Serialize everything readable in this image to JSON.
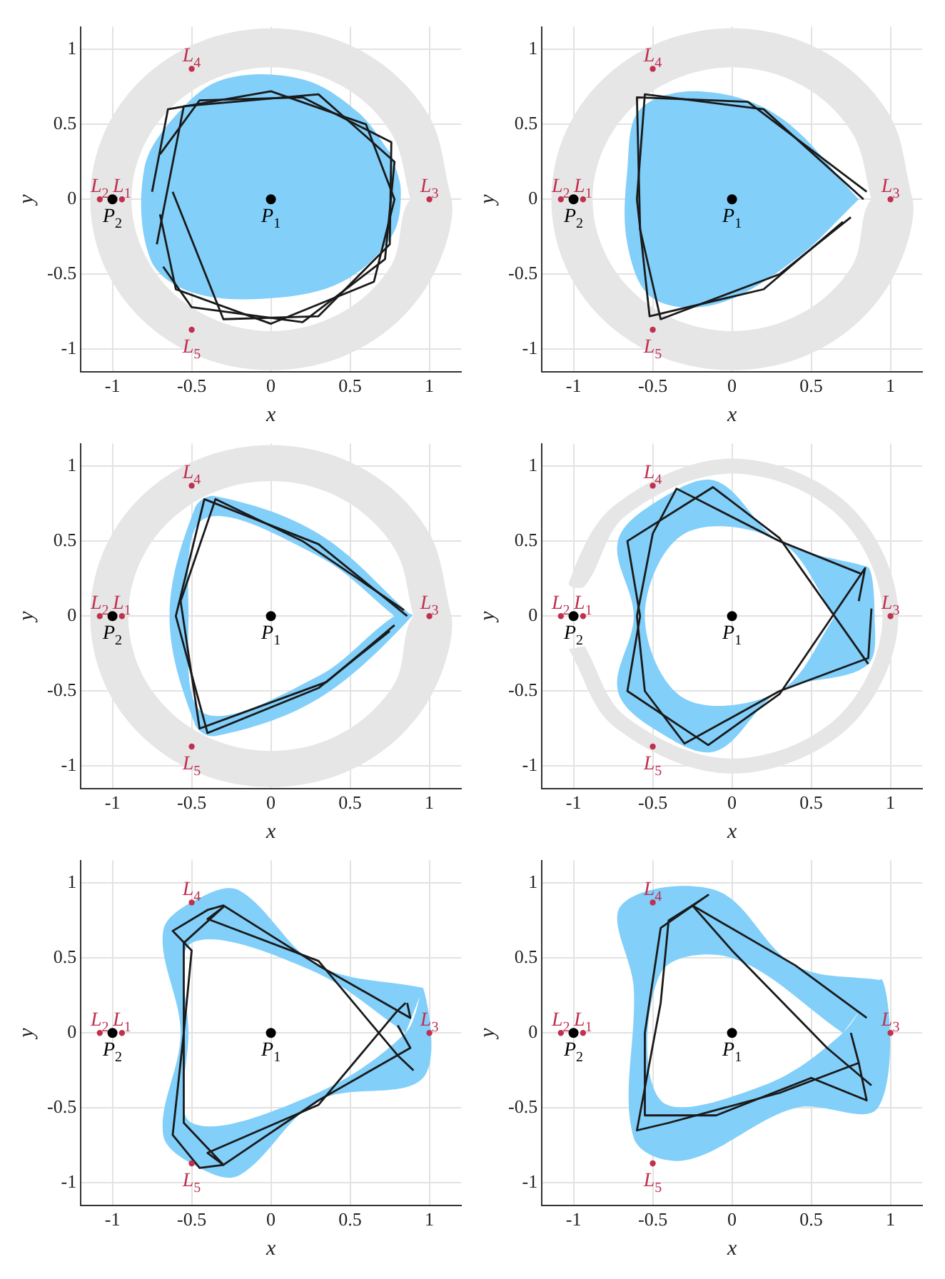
{
  "chart_data": [
    {
      "type": "scatter",
      "xlabel": "x",
      "ylabel": "y",
      "xlim": [
        -1.2,
        1.2
      ],
      "ylim": [
        -1.15,
        1.15
      ],
      "xticks": [
        -1,
        -0.5,
        0,
        0.5,
        1
      ],
      "yticks": [
        -1,
        -0.5,
        0,
        0.5,
        1
      ],
      "grid": true,
      "legend": false,
      "annotations": [
        {
          "text": "L$_{1}$",
          "x": -0.94,
          "y": 0
        },
        {
          "text": "L$_{2}$",
          "x": -1.08,
          "y": 0
        },
        {
          "text": "L$_{3}$",
          "x": 1,
          "y": 0
        },
        {
          "text": "L$_{4}$",
          "x": -0.5,
          "y": 0.87
        },
        {
          "text": "L$_{5}$",
          "x": -0.5,
          "y": -0.87
        },
        {
          "text": "P$_{1}$",
          "x": 0,
          "y": 0
        },
        {
          "text": "P$_{2}$",
          "x": -1,
          "y": 0
        }
      ],
      "series": [
        {
          "type": "area",
          "color": "#e6e6e6",
          "x": [
            1.14,
            0.99,
            0.57,
            0,
            -0.57,
            -0.99,
            -1.14,
            -0.99,
            -0.57,
            0,
            0.57,
            0.99,
            1.14,
            0.88,
            0.76,
            0.44,
            0,
            -0.44,
            -0.76,
            -0.88,
            -0.76,
            -0.44,
            0,
            0.44,
            0.76,
            0.88
          ],
          "values": [
            0,
            0.57,
            0.99,
            1.14,
            0.99,
            0.57,
            0,
            -0.57,
            -0.99,
            -1.14,
            -0.99,
            -0.57,
            0,
            0,
            -0.44,
            -0.76,
            -0.88,
            -0.76,
            -0.44,
            0,
            0.44,
            0.76,
            0.88,
            0.76,
            0.44,
            0
          ]
        },
        {
          "type": "area",
          "color": "#82cffa",
          "x": [
            0.76,
            0.55,
            0.2,
            -0.3,
            -0.6,
            -0.8,
            -0.76,
            -0.5,
            0,
            0.45,
            0.76,
            0.82,
            0.76
          ],
          "values": [
            0.3,
            0.58,
            0.8,
            0.8,
            0.56,
            0.2,
            -0.4,
            -0.62,
            -0.66,
            -0.55,
            -0.25,
            0.05,
            0.3
          ]
        },
        {
          "type": "line",
          "color": "#1a1a1a",
          "x": [
            -0.75,
            -0.65,
            0,
            0.6,
            0.78,
            0.65,
            0,
            -0.6,
            -0.7
          ],
          "values": [
            0.05,
            0.6,
            0.72,
            0.5,
            0,
            -0.55,
            -0.83,
            -0.6,
            -0.1
          ]
        },
        {
          "type": "line",
          "color": "#1a1a1a",
          "x": [
            -0.72,
            -0.55,
            0.3,
            0.78,
            0.72,
            0.2,
            -0.5,
            -0.68
          ],
          "values": [
            -0.3,
            0.62,
            0.7,
            0.25,
            -0.4,
            -0.82,
            -0.72,
            -0.45
          ]
        },
        {
          "type": "line",
          "color": "#1a1a1a",
          "x": [
            -0.7,
            -0.45,
            0.2,
            0.76,
            0.75,
            0.3,
            -0.3,
            -0.62
          ],
          "values": [
            0.3,
            0.66,
            0.68,
            0.38,
            -0.3,
            -0.78,
            -0.8,
            0.05
          ]
        },
        {
          "color": "#c0304f",
          "x": [
            -0.94,
            -1.08,
            1,
            -0.5,
            -0.5
          ],
          "values": [
            0,
            0,
            0,
            0.87,
            -0.87
          ]
        },
        {
          "color": "#000000",
          "x": [
            0,
            -1
          ],
          "values": [
            0,
            0
          ]
        }
      ]
    },
    {
      "type": "scatter",
      "xlabel": "x",
      "ylabel": "y",
      "xlim": [
        -1.2,
        1.2
      ],
      "ylim": [
        -1.15,
        1.15
      ],
      "xticks": [
        -1,
        -0.5,
        0,
        0.5,
        1
      ],
      "yticks": [
        -1,
        -0.5,
        0,
        0.5,
        1
      ],
      "grid": true,
      "legend": false,
      "annotations": [
        {
          "text": "L$_{1}$",
          "x": -0.94,
          "y": 0
        },
        {
          "text": "L$_{2}$",
          "x": -1.08,
          "y": 0
        },
        {
          "text": "L$_{3}$",
          "x": 1,
          "y": 0
        },
        {
          "text": "L$_{4}$",
          "x": -0.5,
          "y": 0.87
        },
        {
          "text": "L$_{5}$",
          "x": -0.5,
          "y": -0.87
        },
        {
          "text": "P$_{1}$",
          "x": 0,
          "y": 0
        },
        {
          "text": "P$_{2}$",
          "x": -1,
          "y": 0
        }
      ],
      "series": [
        {
          "type": "area",
          "color": "#e6e6e6",
          "x": [
            1.14,
            0.99,
            0.57,
            0,
            -0.57,
            -0.99,
            -1.14,
            -0.99,
            -0.57,
            0,
            0.57,
            0.99,
            1.14,
            0.88,
            0.76,
            0.44,
            0,
            -0.44,
            -0.76,
            -0.88,
            -0.76,
            -0.44,
            0,
            0.44,
            0.76,
            0.88
          ],
          "values": [
            0,
            0.57,
            0.99,
            1.14,
            0.99,
            0.57,
            0,
            -0.57,
            -0.99,
            -1.14,
            -0.99,
            -0.57,
            0,
            0,
            -0.44,
            -0.76,
            -0.88,
            -0.76,
            -0.44,
            0,
            0.44,
            0.76,
            0.88,
            0.76,
            0.44,
            0
          ]
        },
        {
          "type": "area",
          "color": "#82cffa",
          "x": [
            0.8,
            0.3,
            -0.2,
            -0.58,
            -0.66,
            -0.66,
            -0.5,
            -0.1,
            0.4,
            0.8
          ],
          "values": [
            0,
            0.55,
            0.72,
            0.6,
            0.2,
            -0.3,
            -0.66,
            -0.7,
            -0.4,
            0
          ]
        },
        {
          "type": "line",
          "color": "#1a1a1a",
          "x": [
            0.83,
            0.2,
            -0.55,
            -0.6,
            -0.52,
            0.2,
            0.7
          ],
          "values": [
            0,
            0.6,
            0.7,
            0,
            -0.78,
            -0.6,
            -0.15
          ]
        },
        {
          "type": "line",
          "color": "#1a1a1a",
          "x": [
            0.85,
            0.1,
            -0.6,
            -0.58,
            -0.45,
            0.3,
            0.75
          ],
          "values": [
            0.05,
            0.65,
            0.68,
            -0.2,
            -0.8,
            -0.5,
            -0.12
          ]
        },
        {
          "color": "#c0304f",
          "x": [
            -0.94,
            -1.08,
            1,
            -0.5,
            -0.5
          ],
          "values": [
            0,
            0,
            0,
            0.87,
            -0.87
          ]
        },
        {
          "color": "#000000",
          "x": [
            0,
            -1
          ],
          "values": [
            0,
            0
          ]
        }
      ]
    },
    {
      "type": "scatter",
      "xlabel": "x",
      "ylabel": "y",
      "xlim": [
        -1.2,
        1.2
      ],
      "ylim": [
        -1.15,
        1.15
      ],
      "xticks": [
        -1,
        -0.5,
        0,
        0.5,
        1
      ],
      "yticks": [
        -1,
        -0.5,
        0,
        0.5,
        1
      ],
      "grid": true,
      "legend": false,
      "annotations": [
        {
          "text": "L$_{1}$",
          "x": -0.94,
          "y": 0
        },
        {
          "text": "L$_{2}$",
          "x": -1.08,
          "y": 0
        },
        {
          "text": "L$_{3}$",
          "x": 1,
          "y": 0
        },
        {
          "text": "L$_{4}$",
          "x": -0.5,
          "y": 0.87
        },
        {
          "text": "L$_{5}$",
          "x": -0.5,
          "y": -0.87
        },
        {
          "text": "P$_{1}$",
          "x": 0,
          "y": 0
        },
        {
          "text": "P$_{2}$",
          "x": -1,
          "y": 0
        }
      ],
      "series": [
        {
          "type": "area",
          "color": "#e6e6e6",
          "x": [
            1.14,
            0.99,
            0.57,
            0,
            -0.57,
            -0.99,
            -1.14,
            -0.99,
            -0.57,
            0,
            0.57,
            0.99,
            1.14,
            0.9,
            0.78,
            0.45,
            0,
            -0.45,
            -0.78,
            -0.9,
            -0.78,
            -0.45,
            0,
            0.45,
            0.78,
            0.9
          ],
          "values": [
            0,
            0.57,
            0.99,
            1.14,
            0.99,
            0.57,
            0,
            -0.57,
            -0.99,
            -1.14,
            -0.99,
            -0.57,
            0,
            0,
            -0.45,
            -0.78,
            -0.9,
            -0.78,
            -0.45,
            0,
            0.45,
            0.78,
            0.9,
            0.78,
            0.45,
            0
          ]
        },
        {
          "type": "area",
          "color": "#82cffa",
          "x": [
            0.89,
            0.3,
            -0.35,
            -0.48,
            -0.64,
            -0.48,
            -0.35,
            0.3,
            0.89,
            0.78,
            0.3,
            -0.42,
            -0.52,
            -0.42,
            0.3,
            0.78
          ],
          "values": [
            0,
            0.55,
            0.8,
            0.72,
            0,
            -0.72,
            -0.8,
            -0.55,
            0,
            0,
            -0.4,
            -0.65,
            0,
            0.65,
            0.4,
            0
          ]
        },
        {
          "type": "line",
          "color": "#1a1a1a",
          "x": [
            0.86,
            0.3,
            -0.42,
            -0.6,
            -0.4,
            0.3,
            0.75
          ],
          "values": [
            0,
            0.48,
            0.78,
            0,
            -0.78,
            -0.48,
            -0.1
          ]
        },
        {
          "type": "line",
          "color": "#1a1a1a",
          "x": [
            0.84,
            0.2,
            -0.35,
            -0.57,
            -0.45,
            0.35,
            0.78
          ],
          "values": [
            0.04,
            0.5,
            0.78,
            0.1,
            -0.75,
            -0.44,
            -0.06
          ]
        },
        {
          "color": "#c0304f",
          "x": [
            -0.94,
            -1.08,
            1,
            -0.5,
            -0.5
          ],
          "values": [
            0,
            0,
            0,
            0.87,
            -0.87
          ]
        },
        {
          "color": "#000000",
          "x": [
            0,
            -1
          ],
          "values": [
            0,
            0
          ]
        }
      ]
    },
    {
      "type": "scatter",
      "xlabel": "x",
      "ylabel": "y",
      "xlim": [
        -1.2,
        1.2
      ],
      "ylim": [
        -1.15,
        1.15
      ],
      "xticks": [
        -1,
        -0.5,
        0,
        0.5,
        1
      ],
      "yticks": [
        -1,
        -0.5,
        0,
        0.5,
        1
      ],
      "grid": true,
      "legend": false,
      "annotations": [
        {
          "text": "L$_{1}$",
          "x": -0.94,
          "y": 0
        },
        {
          "text": "L$_{2}$",
          "x": -1.08,
          "y": 0
        },
        {
          "text": "L$_{3}$",
          "x": 1,
          "y": 0
        },
        {
          "text": "L$_{4}$",
          "x": -0.5,
          "y": 0.87
        },
        {
          "text": "L$_{5}$",
          "x": -0.5,
          "y": -0.87
        },
        {
          "text": "P$_{1}$",
          "x": 0,
          "y": 0
        },
        {
          "text": "P$_{2}$",
          "x": -1,
          "y": 0
        }
      ],
      "series": [
        {
          "type": "area",
          "color": "#e6e6e6",
          "x": [
            -1.03,
            -0.74,
            0,
            0.74,
            1.05,
            0.74,
            0,
            -0.74,
            -1.03,
            -0.93,
            -0.67,
            0,
            0.67,
            0.95,
            0.67,
            0,
            -0.67,
            -0.93
          ],
          "values": [
            -0.22,
            -0.74,
            -1.05,
            -0.74,
            0,
            0.74,
            1.05,
            0.74,
            0.22,
            0.2,
            0.67,
            0.95,
            0.67,
            0,
            -0.67,
            -0.95,
            -0.67,
            -0.2
          ]
        },
        {
          "type": "area",
          "color": "#82cffa",
          "x": [
            0.85,
            0.3,
            -0.1,
            -0.45,
            -0.72,
            -0.62,
            -0.72,
            -0.45,
            -0.1,
            0.3,
            0.85,
            0.9,
            0.85,
            0.65,
            0.3,
            -0.3,
            -0.55,
            -0.3,
            0.3,
            0.65
          ],
          "values": [
            0.33,
            0.5,
            0.9,
            0.78,
            0.5,
            0,
            -0.5,
            -0.78,
            -0.9,
            -0.5,
            -0.33,
            0,
            0.33,
            0,
            -0.5,
            -0.55,
            0,
            0.55,
            0.5,
            0
          ]
        },
        {
          "type": "line",
          "color": "#1a1a1a",
          "x": [
            0.82,
            0.3,
            -0.35,
            -0.5,
            -0.6,
            -0.55,
            -0.3,
            0.3,
            0.86,
            0.88
          ],
          "values": [
            0.28,
            0.5,
            0.85,
            0.55,
            0,
            -0.5,
            -0.85,
            -0.5,
            -0.28,
            0.05
          ]
        },
        {
          "type": "line",
          "color": "#1a1a1a",
          "x": [
            0.86,
            0.3,
            -0.12,
            -0.66,
            -0.58,
            -0.66,
            -0.15,
            0.3,
            0.84,
            0.8
          ],
          "values": [
            -0.32,
            0.52,
            0.86,
            0.5,
            0,
            -0.5,
            -0.86,
            -0.52,
            0.32,
            0.1
          ]
        },
        {
          "color": "#c0304f",
          "x": [
            -0.94,
            -1.08,
            1,
            -0.5,
            -0.5
          ],
          "values": [
            0,
            0,
            0,
            0.87,
            -0.87
          ]
        },
        {
          "color": "#000000",
          "x": [
            0,
            -1
          ],
          "values": [
            0,
            0
          ]
        }
      ]
    },
    {
      "type": "scatter",
      "xlabel": "x",
      "ylabel": "y",
      "xlim": [
        -1.2,
        1.2
      ],
      "ylim": [
        -1.15,
        1.15
      ],
      "xticks": [
        -1,
        -0.5,
        0,
        0.5,
        1
      ],
      "yticks": [
        -1,
        -0.5,
        0,
        0.5,
        1
      ],
      "grid": true,
      "legend": false,
      "annotations": [
        {
          "text": "L$_{1}$",
          "x": -0.94,
          "y": 0
        },
        {
          "text": "L$_{2}$",
          "x": -1.08,
          "y": 0
        },
        {
          "text": "L$_{3}$",
          "x": 1,
          "y": 0
        },
        {
          "text": "L$_{4}$",
          "x": -0.5,
          "y": 0.87
        },
        {
          "text": "L$_{5}$",
          "x": -0.5,
          "y": -0.87
        },
        {
          "text": "P$_{1}$",
          "x": 0,
          "y": 0
        },
        {
          "text": "P$_{2}$",
          "x": -1,
          "y": 0
        }
      ],
      "series": [
        {
          "type": "area",
          "color": "#82cffa",
          "x": [
            0.96,
            0.3,
            -0.2,
            -0.45,
            -0.68,
            -0.57,
            -0.68,
            -0.45,
            -0.2,
            0.3,
            0.96,
            0.96,
            0.85,
            0.25,
            -0.5,
            -0.52,
            -0.5,
            0.25,
            0.85
          ],
          "values": [
            0.3,
            0.45,
            0.95,
            0.9,
            0.68,
            0,
            -0.68,
            -0.9,
            -0.95,
            -0.45,
            -0.3,
            0.3,
            0,
            -0.42,
            -0.6,
            0,
            0.6,
            0.42,
            0
          ]
        },
        {
          "type": "line",
          "color": "#1a1a1a",
          "x": [
            0.86,
            0.88,
            0.3,
            -0.3,
            -0.4,
            -0.62,
            -0.5,
            -0.55,
            -0.62,
            -0.45,
            -0.3,
            0.3,
            0.88,
            0.8
          ],
          "values": [
            0.2,
            0.1,
            0.45,
            0.85,
            0.82,
            0.68,
            0.55,
            0,
            -0.68,
            -0.9,
            -0.88,
            -0.45,
            -0.1,
            0.05
          ]
        },
        {
          "type": "line",
          "color": "#1a1a1a",
          "x": [
            0.9,
            0.8,
            0.3,
            -0.4,
            -0.3,
            -0.55,
            -0.55,
            -0.3,
            -0.4,
            0.3,
            0.8,
            0.85
          ],
          "values": [
            -0.25,
            -0.15,
            0.48,
            0.76,
            0.84,
            0.6,
            -0.6,
            -0.88,
            -0.8,
            -0.48,
            0.15,
            0.2
          ]
        },
        {
          "color": "#c0304f",
          "x": [
            -0.94,
            -1.08,
            1,
            -0.5,
            -0.5
          ],
          "values": [
            0,
            0,
            0,
            0.87,
            -0.87
          ]
        },
        {
          "color": "#000000",
          "x": [
            0,
            -1
          ],
          "values": [
            0,
            0
          ]
        }
      ]
    },
    {
      "type": "scatter",
      "xlabel": "x",
      "ylabel": "y",
      "xlim": [
        -1.2,
        1.2
      ],
      "ylim": [
        -1.15,
        1.15
      ],
      "xticks": [
        -1,
        -0.5,
        0,
        0.5,
        1
      ],
      "yticks": [
        -1,
        -0.5,
        0,
        0.5,
        1
      ],
      "grid": true,
      "legend": false,
      "annotations": [
        {
          "text": "L$_{1}$",
          "x": -0.94,
          "y": 0
        },
        {
          "text": "L$_{2}$",
          "x": -1.08,
          "y": 0
        },
        {
          "text": "L$_{3}$",
          "x": 1,
          "y": 0
        },
        {
          "text": "L$_{4}$",
          "x": -0.5,
          "y": 0.87
        },
        {
          "text": "L$_{5}$",
          "x": -0.5,
          "y": -0.87
        },
        {
          "text": "P$_{1}$",
          "x": 0,
          "y": 0
        },
        {
          "text": "P$_{2}$",
          "x": -1,
          "y": 0
        }
      ],
      "series": [
        {
          "type": "area",
          "color": "#82cffa",
          "x": [
            0.95,
            0.4,
            -0.1,
            -0.7,
            -0.62,
            -0.62,
            -0.3,
            0.4,
            0.92,
            0.95,
            0.7,
            0.2,
            -0.45,
            -0.45,
            0,
            0.7
          ],
          "values": [
            0.35,
            0.45,
            0.95,
            0.85,
            0.3,
            -0.7,
            -0.85,
            -0.5,
            -0.5,
            0.35,
            0,
            -0.35,
            -0.45,
            0.4,
            0.5,
            0
          ]
        },
        {
          "type": "line",
          "color": "#1a1a1a",
          "x": [
            0.88,
            0.6,
            0,
            -0.25,
            -0.15,
            -0.45,
            -0.55,
            -0.55,
            -0.1,
            0.5,
            0.85,
            0.8
          ],
          "values": [
            -0.35,
            -0.1,
            0.55,
            0.85,
            0.92,
            0.7,
            0,
            -0.55,
            -0.55,
            -0.3,
            -0.45,
            -0.2
          ]
        },
        {
          "type": "line",
          "color": "#1a1a1a",
          "x": [
            0.85,
            0.4,
            -0.25,
            -0.4,
            -0.45,
            -0.6,
            -0.4,
            0.3,
            0.8,
            0.75
          ],
          "values": [
            0.1,
            0.45,
            0.85,
            0.75,
            0.2,
            -0.65,
            -0.6,
            -0.4,
            -0.2,
            0.0
          ]
        },
        {
          "color": "#c0304f",
          "x": [
            -0.94,
            -1.08,
            1,
            -0.5,
            -0.5
          ],
          "values": [
            0,
            0,
            0,
            0.87,
            -0.87
          ]
        },
        {
          "color": "#000000",
          "x": [
            0,
            -1
          ],
          "values": [
            0,
            0
          ]
        }
      ]
    }
  ]
}
